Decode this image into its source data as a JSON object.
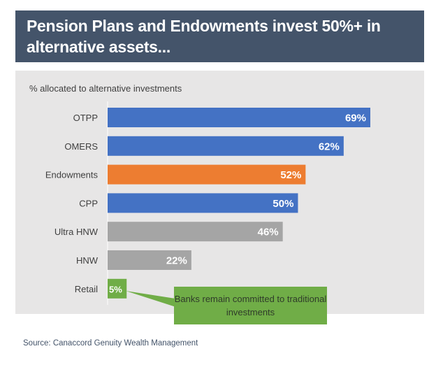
{
  "title": "Pension Plans and Endowments invest 50%+ in alternative assets...",
  "source": "Source:  Canaccord Genuity Wealth Management",
  "callout": "Banks remain committed to traditional investments",
  "chart_data": {
    "type": "bar",
    "orientation": "horizontal",
    "title": "% allocated to alternative investments",
    "categories": [
      "OTPP",
      "OMERS",
      "Endowments",
      "CPP",
      "Ultra HNW",
      "HNW",
      "Retail"
    ],
    "values": [
      69,
      62,
      52,
      50,
      46,
      22,
      5
    ],
    "data_labels": [
      "69%",
      "62%",
      "52%",
      "50%",
      "46%",
      "22%",
      "5%"
    ],
    "colors": [
      "#4472c4",
      "#4472c4",
      "#ed7d31",
      "#4472c4",
      "#a5a5a5",
      "#a5a5a5",
      "#70ad47"
    ],
    "xlim": [
      0,
      100
    ],
    "grid": false
  }
}
